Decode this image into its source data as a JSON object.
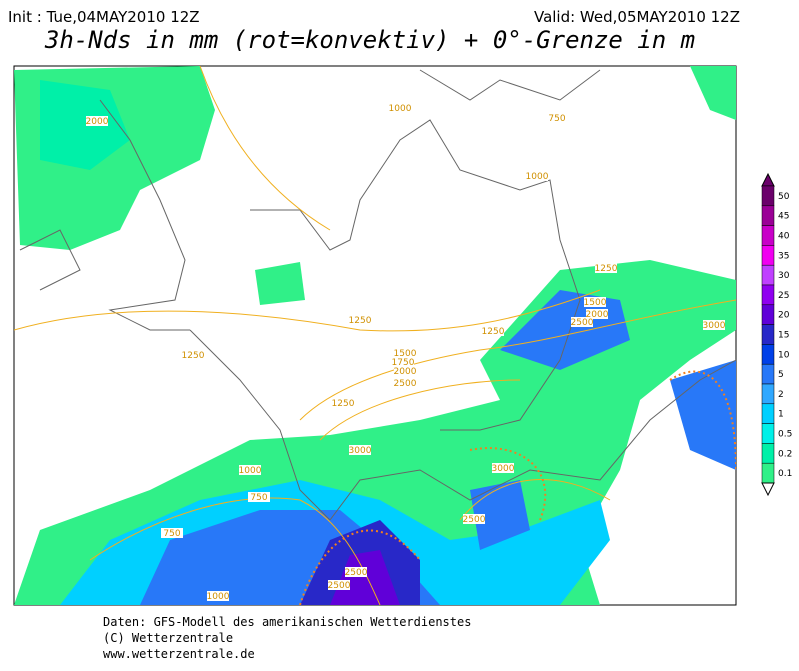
{
  "header": {
    "init": "Init : Tue,04MAY2010 12Z",
    "valid": "Valid: Wed,05MAY2010 12Z",
    "title": "3h-Nds in mm (rot=konvektiv) + 0°-Grenze in m"
  },
  "legend": [
    {
      "label": "50",
      "color": "#6a006a"
    },
    {
      "label": "45",
      "color": "#9a0096"
    },
    {
      "label": "40",
      "color": "#c800c8"
    },
    {
      "label": "35",
      "color": "#f000f0"
    },
    {
      "label": "30",
      "color": "#c040ff"
    },
    {
      "label": "25",
      "color": "#9000f0"
    },
    {
      "label": "20",
      "color": "#6000d8"
    },
    {
      "label": "15",
      "color": "#2828c8"
    },
    {
      "label": "10",
      "color": "#0040e8"
    },
    {
      "label": "5",
      "color": "#2878f8"
    },
    {
      "label": "2",
      "color": "#30a8ff"
    },
    {
      "label": "1",
      "color": "#00d0ff"
    },
    {
      "label": "0.5",
      "color": "#00f0e8"
    },
    {
      "label": "0.2",
      "color": "#00f0a8"
    },
    {
      "label": "0.1",
      "color": "#30f088"
    }
  ],
  "contour_labels": [
    "2000",
    "1000",
    "750",
    "1000",
    "1250",
    "1500",
    "2000",
    "2500",
    "3000",
    "1250",
    "1250",
    "1250",
    "1500",
    "1750",
    "2000",
    "2500",
    "1250",
    "3000",
    "3000",
    "1000",
    "750",
    "750",
    "2500",
    "2500",
    "2500",
    "1000"
  ],
  "footer": [
    "Daten: GFS-Modell des amerikanischen Wetterdienstes",
    "(C) Wetterzentrale",
    "www.wetterzentrale.de"
  ]
}
